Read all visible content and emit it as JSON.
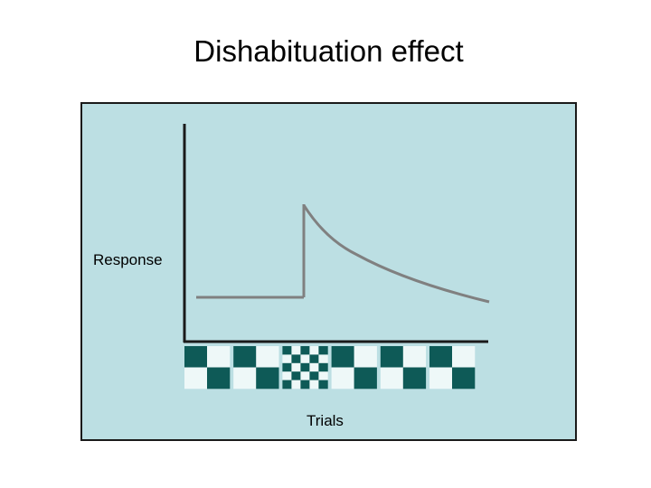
{
  "title": "Dishabituation effect",
  "axes": {
    "y_label": "Response",
    "x_label": "Trials"
  },
  "colors": {
    "panel_background": "#bcdfe3",
    "curve": "#808080",
    "axis": "#1a1a1a",
    "checker_dark": "#0e5a57",
    "checker_light": "#eef8f8"
  },
  "curve_description_points": [
    {
      "trial": 0.0,
      "response": 0.0
    },
    {
      "trial": 0.37,
      "response": 0.0
    },
    {
      "trial": 0.37,
      "response": 1.0
    },
    {
      "trial": 1.0,
      "response": 0.0
    }
  ],
  "stimuli": [
    {
      "pattern": "large-checker",
      "role": "habituation"
    },
    {
      "pattern": "large-checker",
      "role": "habituation"
    },
    {
      "pattern": "small-checker",
      "role": "novel"
    },
    {
      "pattern": "large-checker",
      "role": "habituation"
    },
    {
      "pattern": "large-checker",
      "role": "habituation"
    },
    {
      "pattern": "large-checker",
      "role": "habituation"
    }
  ]
}
